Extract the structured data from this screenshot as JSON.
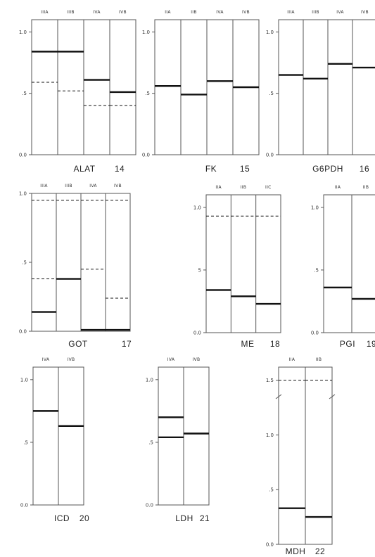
{
  "figure": {
    "charts": [
      {
        "name": "ALAT",
        "number": "14",
        "columns": [
          "IIIA",
          "IIIB",
          "IVA",
          "IVB"
        ],
        "tick_labels": [
          "1.0",
          ".5",
          "0.0"
        ]
      },
      {
        "name": "FK",
        "number": "15",
        "columns": [
          "IIA",
          "IIB",
          "IVA",
          "IVB"
        ],
        "tick_labels": [
          "1.0",
          ".5",
          "0.0"
        ]
      },
      {
        "name": "G6PDH",
        "number": "16",
        "columns": [
          "IIIA",
          "IIIB",
          "IVA",
          "IVB"
        ],
        "tick_labels": [
          "1.0",
          ".5",
          "0.0"
        ]
      },
      {
        "name": "GOT",
        "number": "17",
        "columns": [
          "IIIA",
          "IIIB",
          "IVA",
          "IVB"
        ],
        "tick_labels": [
          "1.0",
          ".5",
          "0.0"
        ]
      },
      {
        "name": "ME",
        "number": "18",
        "columns": [
          "IIA",
          "IIB",
          "IIC"
        ],
        "tick_labels": [
          "1.0",
          "5",
          "0.0"
        ]
      },
      {
        "name": "PGI",
        "number": "19",
        "columns": [
          "IIA",
          "IIB"
        ],
        "tick_labels": [
          "1.0",
          ".5",
          "0.0"
        ]
      },
      {
        "name": "ICD",
        "number": "20",
        "columns": [
          "IVA",
          "IVB"
        ],
        "tick_labels": [
          "1.0",
          ".5",
          "0.0"
        ]
      },
      {
        "name": "LDH",
        "number": "21",
        "columns": [
          "IVA",
          "IVB"
        ],
        "tick_labels": [
          "1.0",
          ".5",
          "0.0"
        ]
      },
      {
        "name": "MDH",
        "number": "22",
        "columns": [
          "IIA",
          "IIB"
        ],
        "tick_labels": [
          "1.5",
          "1.0",
          ".5",
          "0.0"
        ]
      }
    ]
  },
  "chart_data": [
    {
      "type": "bar",
      "title": "ALAT",
      "categories": [
        "IIIA",
        "IIIB",
        "IVA",
        "IVB"
      ],
      "ylim": [
        0,
        1.1
      ],
      "series": [
        {
          "values": [
            0.84,
            0.84,
            0.61,
            0.51
          ]
        },
        {
          "values": [
            0.59,
            0.52,
            0.4,
            0.4
          ]
        }
      ]
    },
    {
      "type": "bar",
      "title": "FK",
      "categories": [
        "IIA",
        "IIB",
        "IVA",
        "IVB"
      ],
      "ylim": [
        0,
        1.1
      ],
      "series": [
        {
          "values": [
            0.56,
            0.49,
            0.6,
            0.55
          ]
        }
      ]
    },
    {
      "type": "bar",
      "title": "G6PDH",
      "categories": [
        "IIIA",
        "IIIB",
        "IVA",
        "IVB"
      ],
      "ylim": [
        0,
        1.1
      ],
      "series": [
        {
          "values": [
            0.65,
            0.62,
            0.74,
            0.71
          ]
        }
      ]
    },
    {
      "type": "bar",
      "title": "GOT",
      "categories": [
        "IIIA",
        "IIIB",
        "IVA",
        "IVB"
      ],
      "ylim": [
        0,
        1.0
      ],
      "series": [
        {
          "values": [
            0.14,
            0.38,
            0.01,
            0.01
          ]
        },
        {
          "values": [
            0.38,
            0.38,
            0.45,
            0.24
          ]
        },
        {
          "values": [
            0.95,
            0.95,
            0.95,
            0.95
          ]
        }
      ]
    },
    {
      "type": "bar",
      "title": "ME",
      "categories": [
        "IIA",
        "IIB",
        "IIC"
      ],
      "ylim": [
        0,
        1.1
      ],
      "series": [
        {
          "values": [
            0.34,
            0.29,
            0.23
          ]
        },
        {
          "values": [
            0.93,
            0.93,
            0.93
          ]
        }
      ]
    },
    {
      "type": "bar",
      "title": "PGI",
      "categories": [
        "IIA",
        "IIB"
      ],
      "ylim": [
        0,
        1.1
      ],
      "series": [
        {
          "values": [
            0.36,
            0.27
          ]
        }
      ]
    },
    {
      "type": "bar",
      "title": "ICD",
      "categories": [
        "IVA",
        "IVB"
      ],
      "ylim": [
        0,
        1.1
      ],
      "series": [
        {
          "values": [
            0.75,
            0.63
          ]
        }
      ]
    },
    {
      "type": "bar",
      "title": "LDH",
      "categories": [
        "IVA",
        "IVB"
      ],
      "ylim": [
        0,
        1.1
      ],
      "series": [
        {
          "values": [
            0.7,
            0.57
          ]
        },
        {
          "values": [
            0.54,
            0.57
          ]
        }
      ]
    },
    {
      "type": "bar",
      "title": "MDH",
      "categories": [
        "IIA",
        "IIB"
      ],
      "ylim": [
        0,
        1.6
      ],
      "series": [
        {
          "values": [
            0.33,
            0.25
          ]
        },
        {
          "values": [
            1.5,
            1.5
          ]
        }
      ]
    }
  ]
}
